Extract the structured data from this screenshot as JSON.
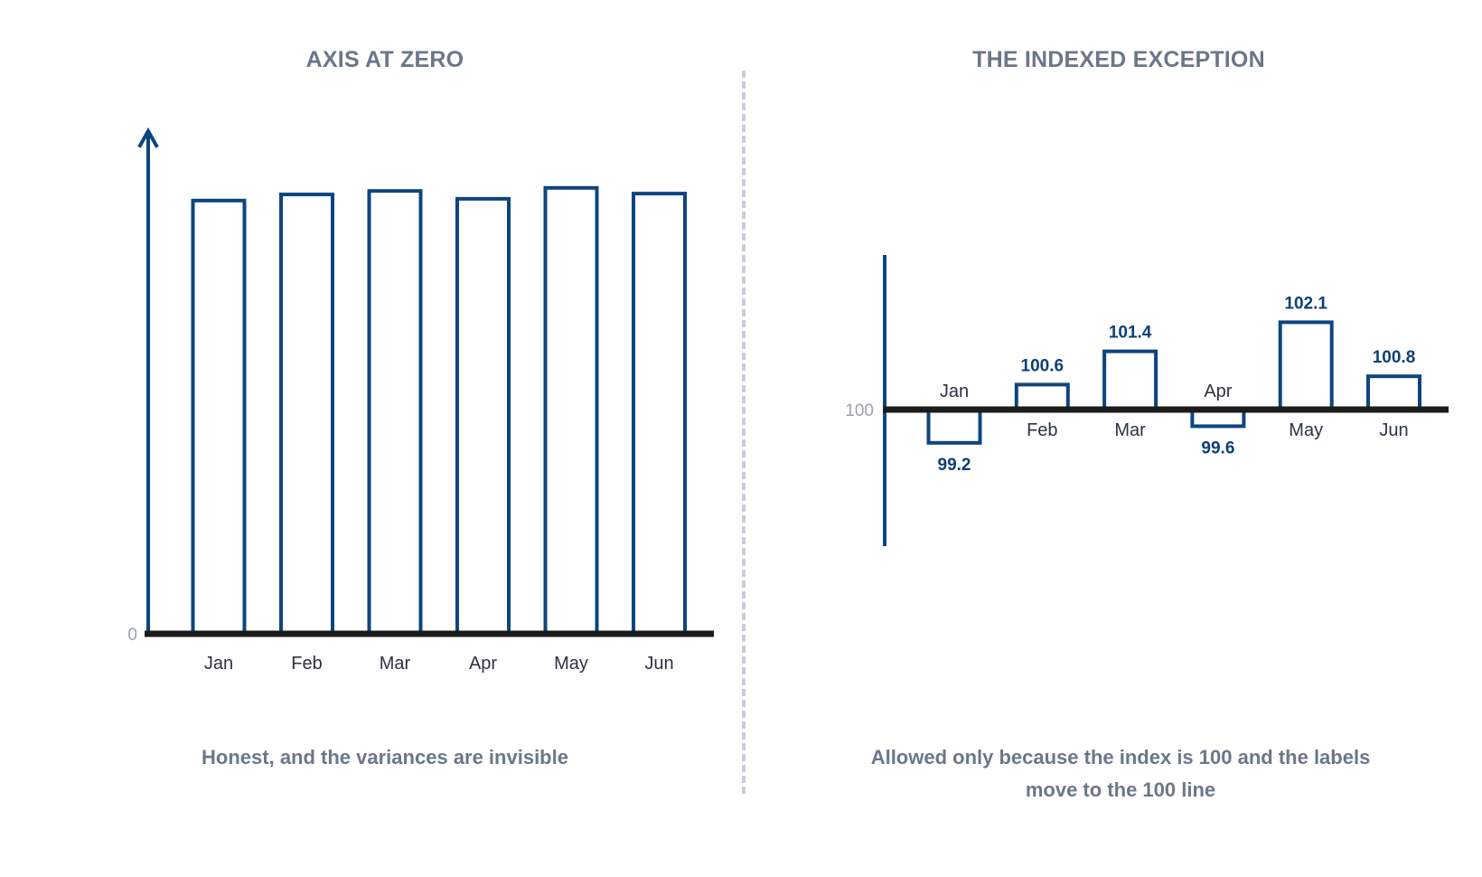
{
  "colors": {
    "bar_stroke": "#0d4580",
    "axis": "#1b1b1b",
    "title": "#6b7789",
    "divider": "#c8ced8"
  },
  "left": {
    "title": "AXIS AT ZERO",
    "caption": "Honest, and the variances are invisible"
  },
  "right": {
    "title": "THE INDEXED EXCEPTION",
    "caption": "Allowed only because the index is 100 and the labels move to the 100 line"
  },
  "chart_data": [
    {
      "type": "bar",
      "title": "AXIS AT ZERO",
      "categories": [
        "Jan",
        "Feb",
        "Mar",
        "Apr",
        "May",
        "Jun"
      ],
      "values": [
        99.2,
        100.6,
        101.4,
        99.6,
        102.1,
        100.8
      ],
      "ylim": [
        0,
        112
      ],
      "y_ticks": [
        "0"
      ],
      "grid": false,
      "legend": "none"
    },
    {
      "type": "bar",
      "title": "THE INDEXED EXCEPTION",
      "categories": [
        "Jan",
        "Feb",
        "Mar",
        "Apr",
        "May",
        "Jun"
      ],
      "values": [
        99.2,
        100.6,
        101.4,
        99.6,
        102.1,
        100.8
      ],
      "value_labels": [
        "99.2",
        "100.6",
        "101.4",
        "99.6",
        "102.1",
        "100.8"
      ],
      "baseline": 100,
      "ylim": [
        96.5,
        103.5
      ],
      "y_ticks": [
        "100"
      ],
      "grid": false,
      "legend": "none"
    }
  ]
}
